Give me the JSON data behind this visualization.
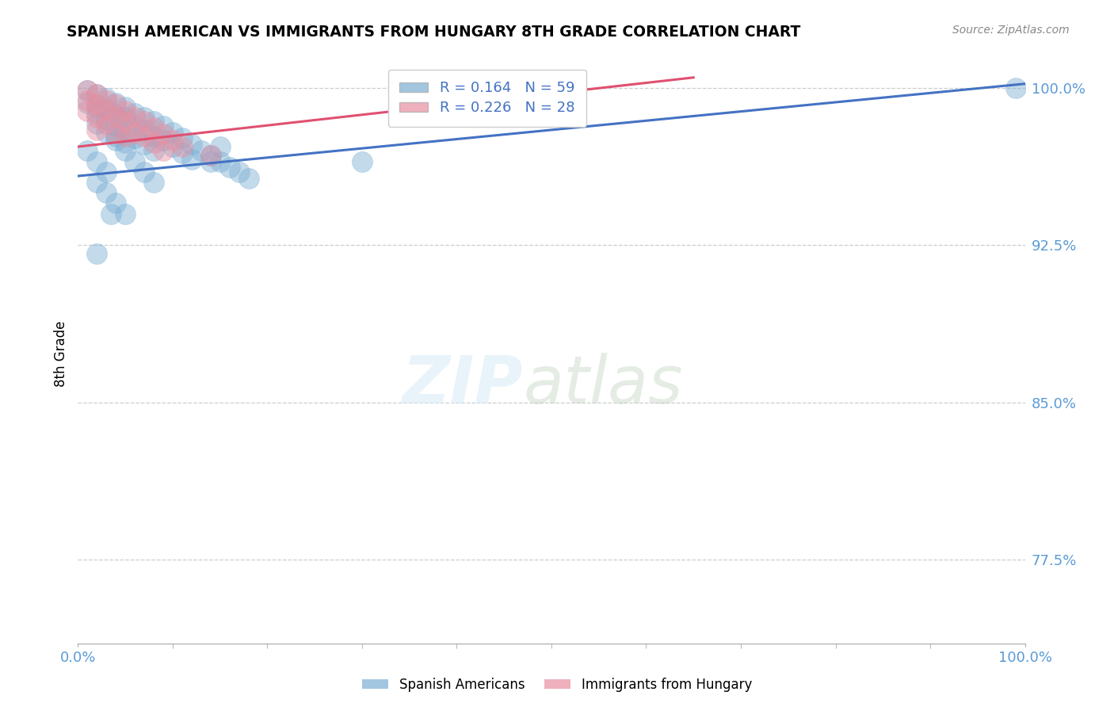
{
  "title": "SPANISH AMERICAN VS IMMIGRANTS FROM HUNGARY 8TH GRADE CORRELATION CHART",
  "source": "Source: ZipAtlas.com",
  "ylabel": "8th Grade",
  "xlim": [
    0.0,
    1.0
  ],
  "ylim": [
    0.735,
    1.015
  ],
  "yticks": [
    0.775,
    0.85,
    0.925,
    1.0
  ],
  "ytick_labels": [
    "77.5%",
    "85.0%",
    "92.5%",
    "100.0%"
  ],
  "xticks": [
    0.0,
    1.0
  ],
  "xtick_labels": [
    "0.0%",
    "100.0%"
  ],
  "legend_label_blue": "R = 0.164   N = 59",
  "legend_label_pink": "R = 0.226   N = 28",
  "legend_label_blue_bottom": "Spanish Americans",
  "legend_label_pink_bottom": "Immigrants from Hungary",
  "blue_color": "#7BAFD4",
  "pink_color": "#E88FA0",
  "blue_line_color": "#4472C4",
  "pink_line_color": "#E05070",
  "blue_trend": [
    0.0,
    1.0,
    0.958,
    1.002
  ],
  "pink_trend": [
    0.0,
    0.65,
    0.972,
    1.005
  ],
  "blue_scatter_x": [
    0.01,
    0.01,
    0.02,
    0.02,
    0.02,
    0.02,
    0.03,
    0.03,
    0.03,
    0.03,
    0.04,
    0.04,
    0.04,
    0.04,
    0.05,
    0.05,
    0.05,
    0.05,
    0.06,
    0.06,
    0.06,
    0.07,
    0.07,
    0.07,
    0.08,
    0.08,
    0.08,
    0.09,
    0.09,
    0.1,
    0.1,
    0.11,
    0.11,
    0.12,
    0.12,
    0.13,
    0.14,
    0.15,
    0.15,
    0.16,
    0.17,
    0.18,
    0.01,
    0.02,
    0.03,
    0.04,
    0.05,
    0.06,
    0.07,
    0.08,
    0.02,
    0.03,
    0.04,
    0.05,
    0.3,
    0.035,
    0.99,
    0.14,
    0.02
  ],
  "blue_scatter_y": [
    0.999,
    0.993,
    0.997,
    0.991,
    0.988,
    0.983,
    0.995,
    0.99,
    0.985,
    0.979,
    0.993,
    0.987,
    0.982,
    0.977,
    0.991,
    0.986,
    0.98,
    0.974,
    0.988,
    0.982,
    0.976,
    0.986,
    0.98,
    0.973,
    0.984,
    0.977,
    0.97,
    0.982,
    0.975,
    0.979,
    0.972,
    0.976,
    0.969,
    0.973,
    0.966,
    0.97,
    0.968,
    0.965,
    0.972,
    0.962,
    0.96,
    0.957,
    0.97,
    0.965,
    0.96,
    0.975,
    0.97,
    0.965,
    0.96,
    0.955,
    0.955,
    0.95,
    0.945,
    0.94,
    0.965,
    0.94,
    1.0,
    0.965,
    0.921
  ],
  "pink_scatter_x": [
    0.01,
    0.01,
    0.01,
    0.02,
    0.02,
    0.02,
    0.02,
    0.03,
    0.03,
    0.03,
    0.04,
    0.04,
    0.04,
    0.05,
    0.05,
    0.05,
    0.06,
    0.06,
    0.07,
    0.07,
    0.08,
    0.08,
    0.09,
    0.09,
    0.1,
    0.11,
    0.14,
    0.43
  ],
  "pink_scatter_y": [
    0.999,
    0.994,
    0.989,
    0.997,
    0.992,
    0.986,
    0.98,
    0.994,
    0.989,
    0.983,
    0.992,
    0.986,
    0.979,
    0.989,
    0.984,
    0.977,
    0.986,
    0.979,
    0.984,
    0.977,
    0.981,
    0.974,
    0.978,
    0.97,
    0.975,
    0.972,
    0.968,
    0.992
  ]
}
